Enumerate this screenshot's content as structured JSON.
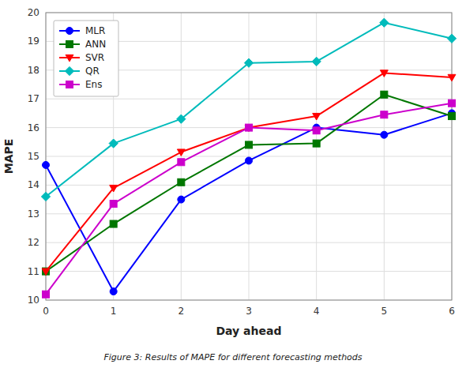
{
  "chart_data": {
    "type": "line",
    "x": [
      0,
      1,
      2,
      3,
      4,
      5,
      6
    ],
    "series": [
      {
        "name": "MLR",
        "color": "#0000FF",
        "marker": "circle",
        "values": [
          14.7,
          10.3,
          13.5,
          14.85,
          16.0,
          15.75,
          16.5
        ]
      },
      {
        "name": "ANN",
        "color": "#007700",
        "marker": "square",
        "values": [
          11.0,
          12.65,
          14.1,
          15.4,
          15.45,
          17.15,
          16.4
        ]
      },
      {
        "name": "SVR",
        "color": "#FF0000",
        "marker": "triangle-down",
        "values": [
          11.0,
          13.9,
          15.15,
          16.0,
          16.4,
          17.9,
          17.75
        ]
      },
      {
        "name": "QR",
        "color": "#00BBBB",
        "marker": "diamond",
        "values": [
          13.6,
          15.45,
          16.3,
          18.25,
          18.3,
          19.65,
          19.1
        ]
      },
      {
        "name": "Ens",
        "color": "#CC00CC",
        "marker": "square",
        "values": [
          10.2,
          13.35,
          14.8,
          16.0,
          15.9,
          16.45,
          16.85
        ]
      }
    ],
    "x_label": "Day ahead",
    "y_label": "MAPE",
    "xlim": [
      0,
      6
    ],
    "ylim": [
      10,
      20
    ],
    "xticks": [
      0,
      1,
      2,
      3,
      4,
      5,
      6
    ],
    "yticks": [
      10,
      11,
      12,
      13,
      14,
      15,
      16,
      17,
      18,
      19,
      20
    ],
    "grid": true,
    "legend": "upper left",
    "caption": "Figure 3: Results of MAPE for different forecasting methods"
  }
}
